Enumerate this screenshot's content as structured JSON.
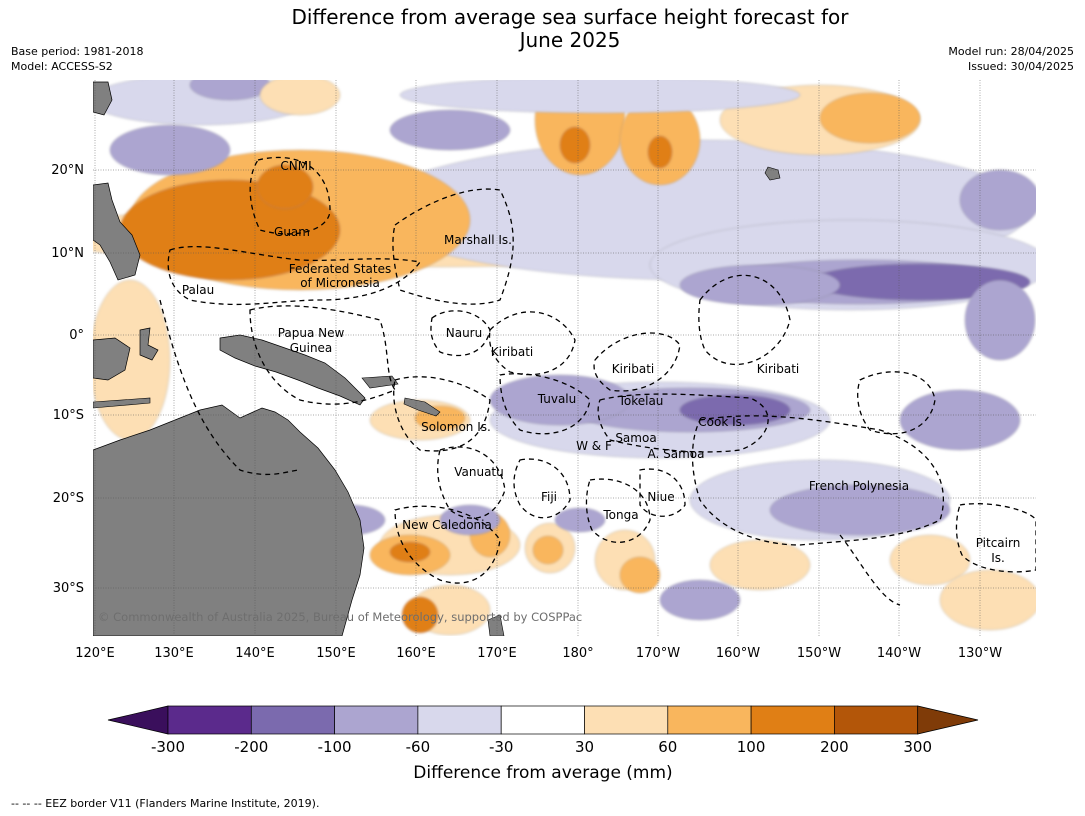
{
  "title_line1": "Difference from average sea surface height forecast for",
  "title_line2": "June 2025",
  "meta": {
    "base_period": "Base period: 1981-2018",
    "model": "Model: ACCESS-S2",
    "model_run": "Model run: 28/04/2025",
    "issued": "Issued: 30/04/2025"
  },
  "copyright": "© Commonwealth of Australia 2025, Bureau of Meteorology, supported by COSPPac",
  "footer": "--  --  -- EEZ border V11 (Flanders Marine Institute, 2019).",
  "lon_ticks": [
    "120°E",
    "130°E",
    "140°E",
    "150°E",
    "160°E",
    "170°E",
    "180°",
    "170°W",
    "160°W",
    "150°W",
    "140°W",
    "130°W"
  ],
  "lat_ticks": [
    "20°N",
    "10°N",
    "0°",
    "10°S",
    "20°S",
    "30°S"
  ],
  "colorbar": {
    "label": "Difference from average (mm)",
    "ticks": [
      "-300",
      "-200",
      "-100",
      "-60",
      "-30",
      "30",
      "60",
      "100",
      "200",
      "300"
    ],
    "colors": [
      "#3a0f5c",
      "#5b2a8c",
      "#7b6aae",
      "#aca5d0",
      "#d8d8ec",
      "#ffffff",
      "#fddfb4",
      "#f9b65d",
      "#e07f15",
      "#b35609",
      "#7f3b08"
    ]
  },
  "region_labels": [
    "CNMI",
    "Guam",
    "Marshall Is.",
    "Federated States",
    "of Micronesia",
    "Palau",
    "Papua New",
    "Guinea",
    "Nauru",
    "Kiribati",
    "Kiribati",
    "Kiribati",
    "Tuvalu",
    "Tokelau",
    "Cook Is.",
    "Solomon Is.",
    "Samoa",
    "W & F",
    "A. Samoa",
    "Vanuatu",
    "Fiji",
    "Niue",
    "French Polynesia",
    "Tonga",
    "New Caledonia",
    "Pitcairn",
    "Is."
  ],
  "chart_data": {
    "type": "heatmap",
    "title": "Difference from average sea surface height forecast for June 2025",
    "colorbar_label": "Difference from average (mm)",
    "levels_mm": [
      -300,
      -200,
      -100,
      -60,
      -30,
      30,
      60,
      100,
      200,
      300
    ],
    "lon_range": [
      "120°E",
      "125°W"
    ],
    "lat_range": [
      "35°S",
      "30°N"
    ],
    "grid": true,
    "patterns": [
      {
        "region": "west of Guam / Philippine Sea",
        "value_mm": "100 to 200"
      },
      {
        "region": "Marshall Is. band ~10°N",
        "value_mm": "30 to 60"
      },
      {
        "region": "central tropical Pacific ~7°N",
        "value_mm": "-100 to -200"
      },
      {
        "region": "Tokelau / Cook Is. ~10°S",
        "value_mm": "-60 to -200"
      },
      {
        "region": "New Caledonia / Tasman ~26°S",
        "value_mm": "60 to 200"
      },
      {
        "region": "French Polynesia ~20°S",
        "value_mm": "-60 to -100"
      }
    ]
  }
}
